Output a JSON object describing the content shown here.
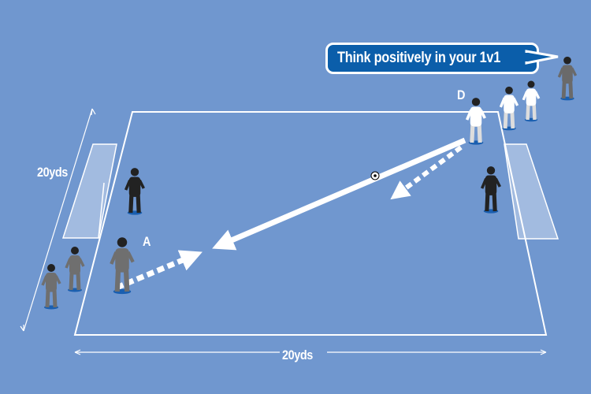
{
  "callout": {
    "text": "Think positively in your 1v1"
  },
  "dimensions": {
    "side": "20yds",
    "bottom": "20yds"
  },
  "player_labels": {
    "attacker": "A",
    "defender": "D"
  },
  "colors": {
    "background": "#7097cf",
    "callout": "#0b5eaa",
    "lines": "#ffffff",
    "attacking_team": "#6f6f6f",
    "defending_team": "#ffffff",
    "goalkeeper": "#222222"
  }
}
